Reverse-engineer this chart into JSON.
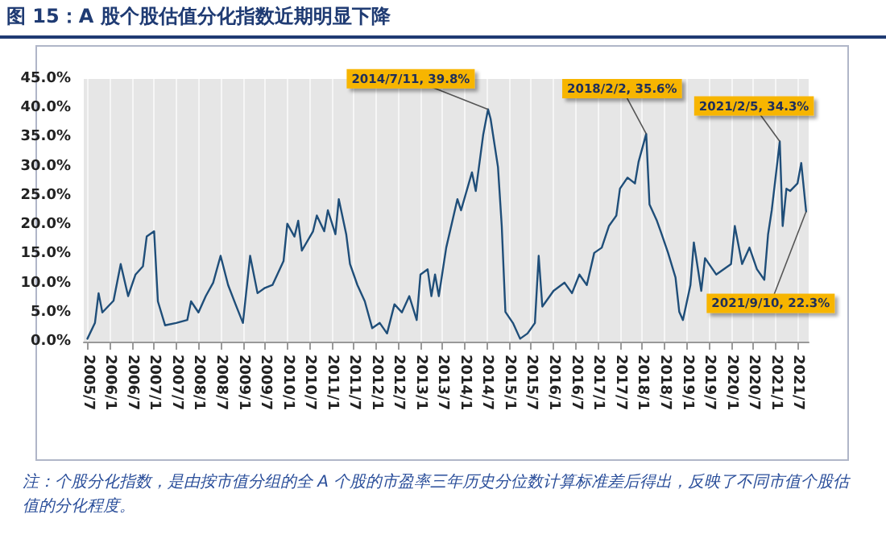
{
  "chart_data": {
    "type": "line",
    "title": "图 15：A 股个股估值分化指数近期明显下降",
    "x": [
      "2005-07",
      "2005-09",
      "2005-10",
      "2005-11",
      "2006-02",
      "2006-04",
      "2006-06",
      "2006-08",
      "2006-10",
      "2006-11",
      "2007-01",
      "2007-02",
      "2007-04",
      "2007-07",
      "2007-10",
      "2007-11",
      "2008-01",
      "2008-03",
      "2008-05",
      "2008-07",
      "2008-09",
      "2008-11",
      "2009-01",
      "2009-03",
      "2009-05",
      "2009-07",
      "2009-09",
      "2009-12",
      "2010-01",
      "2010-03",
      "2010-04",
      "2010-05",
      "2010-08",
      "2010-09",
      "2010-11",
      "2010-12",
      "2011-02",
      "2011-03",
      "2011-05",
      "2011-06",
      "2011-08",
      "2011-10",
      "2011-12",
      "2012-02",
      "2012-04",
      "2012-06",
      "2012-08",
      "2012-10",
      "2012-12",
      "2013-01",
      "2013-03",
      "2013-04",
      "2013-05",
      "2013-06",
      "2013-08",
      "2013-11",
      "2013-12",
      "2014-03",
      "2014-04",
      "2014-06",
      "2014-07-11",
      "2014-08",
      "2014-10",
      "2014-11",
      "2014-12",
      "2015-02",
      "2015-04",
      "2015-06",
      "2015-08",
      "2015-09",
      "2015-10",
      "2016-01",
      "2016-04",
      "2016-06",
      "2016-08",
      "2016-10",
      "2016-12",
      "2017-02",
      "2017-04",
      "2017-06",
      "2017-07",
      "2017-09",
      "2017-11",
      "2017-12",
      "2018-02-02",
      "2018-03",
      "2018-05",
      "2018-06",
      "2018-08",
      "2018-10",
      "2018-11",
      "2018-12",
      "2019-02",
      "2019-03",
      "2019-05",
      "2019-06",
      "2019-09",
      "2019-11",
      "2020-01",
      "2020-02",
      "2020-04",
      "2020-06",
      "2020-08",
      "2020-10",
      "2020-11",
      "2020-12",
      "2021-02-05",
      "2021-03",
      "2021-04",
      "2021-05",
      "2021-07",
      "2021-08",
      "2021-09-10"
    ],
    "series": [
      {
        "color": "#1f4e79",
        "values": [
          0.5,
          3.2,
          8.3,
          5,
          7,
          13.3,
          7.8,
          11.5,
          12.9,
          18,
          18.9,
          6.9,
          2.8,
          3.2,
          3.7,
          6.9,
          5,
          7.8,
          10.1,
          14.7,
          9.7,
          6.4,
          3.2,
          14.7,
          8.3,
          9.2,
          9.7,
          13.8,
          20.2,
          18,
          20.7,
          15.6,
          18.9,
          21.6,
          18.9,
          22.5,
          18.4,
          24.4,
          18.4,
          13.3,
          9.7,
          6.9,
          2.3,
          3.2,
          1.4,
          6.4,
          5,
          7.8,
          3.7,
          11.5,
          12.4,
          7.8,
          11.5,
          7.8,
          16.1,
          24.4,
          22.5,
          29,
          25.8,
          35.4,
          39.8,
          38.2,
          29.9,
          19.8,
          5.1,
          3.2,
          0.5,
          1.4,
          3.2,
          14.7,
          6,
          8.7,
          10.1,
          8.3,
          11.5,
          9.7,
          15.2,
          16.1,
          19.8,
          21.6,
          26.2,
          28.1,
          27.1,
          30.8,
          35.6,
          23.5,
          20.7,
          18.9,
          15.2,
          11,
          5.1,
          3.7,
          9.7,
          17,
          8.7,
          14.3,
          11.5,
          12.4,
          13.3,
          19.8,
          13.3,
          16.1,
          12.4,
          10.6,
          18.4,
          22.5,
          34.3,
          19.8,
          26.2,
          25.8,
          27.1,
          30.6,
          22.3
        ]
      }
    ],
    "xlim": [
      "2005-06",
      "2021-10"
    ],
    "xticks": [
      {
        "value": "2005-07",
        "label": "2005/7"
      },
      {
        "value": "2006-01",
        "label": "2006/1"
      },
      {
        "value": "2006-07",
        "label": "2006/7"
      },
      {
        "value": "2007-01",
        "label": "2007/1"
      },
      {
        "value": "2007-07",
        "label": "2007/7"
      },
      {
        "value": "2008-01",
        "label": "2008/1"
      },
      {
        "value": "2008-07",
        "label": "2008/7"
      },
      {
        "value": "2009-01",
        "label": "2009/1"
      },
      {
        "value": "2009-07",
        "label": "2009/7"
      },
      {
        "value": "2010-01",
        "label": "2010/1"
      },
      {
        "value": "2010-07",
        "label": "2010/7"
      },
      {
        "value": "2011-01",
        "label": "2011/1"
      },
      {
        "value": "2011-07",
        "label": "2011/7"
      },
      {
        "value": "2012-01",
        "label": "2012/1"
      },
      {
        "value": "2012-07",
        "label": "2012/7"
      },
      {
        "value": "2013-01",
        "label": "2013/1"
      },
      {
        "value": "2013-07",
        "label": "2013/7"
      },
      {
        "value": "2014-01",
        "label": "2014/1"
      },
      {
        "value": "2014-07",
        "label": "2014/7"
      },
      {
        "value": "2015-01",
        "label": "2015/1"
      },
      {
        "value": "2015-07",
        "label": "2015/7"
      },
      {
        "value": "2016-01",
        "label": "2016/1"
      },
      {
        "value": "2016-07",
        "label": "2016/7"
      },
      {
        "value": "2017-01",
        "label": "2017/1"
      },
      {
        "value": "2017-07",
        "label": "2017/7"
      },
      {
        "value": "2018-01",
        "label": "2018/1"
      },
      {
        "value": "2018-07",
        "label": "2018/7"
      },
      {
        "value": "2019-01",
        "label": "2019/1"
      },
      {
        "value": "2019-07",
        "label": "2019/7"
      },
      {
        "value": "2020-01",
        "label": "2020/1"
      },
      {
        "value": "2020-07",
        "label": "2020/7"
      },
      {
        "value": "2021-01",
        "label": "2021/1"
      },
      {
        "value": "2021-07",
        "label": "2021/7"
      }
    ],
    "ylim": [
      0,
      45
    ],
    "yticks": [
      {
        "value": 0,
        "label": "0.0%"
      },
      {
        "value": 5,
        "label": "5.0%"
      },
      {
        "value": 10,
        "label": "10.0%"
      },
      {
        "value": 15,
        "label": "15.0%"
      },
      {
        "value": 20,
        "label": "20.0%"
      },
      {
        "value": 25,
        "label": "25.0%"
      },
      {
        "value": 30,
        "label": "30.0%"
      },
      {
        "value": 35,
        "label": "35.0%"
      },
      {
        "value": 40,
        "label": "40.0%"
      },
      {
        "value": 45,
        "label": "45.0%"
      }
    ],
    "grid": "x",
    "marker": "none",
    "line_style": "solid",
    "annotations": [
      {
        "text": "2014/7/11, 39.8%",
        "x": "2014-07-11",
        "y": 39.8
      },
      {
        "text": "2018/2/2, 35.6%",
        "x": "2018-02-02",
        "y": 35.6
      },
      {
        "text": "2021/2/5, 34.3%",
        "x": "2021-02-05",
        "y": 34.3
      },
      {
        "text": "2021/9/10, 22.3%",
        "x": "2021-09-10",
        "y": 22.3
      },
      "注：个股分化指数，是由按市值分组的全 A 个股的市盈率三年历史分位数计算标准差后得出，反映了不同市值个股估值的分化程度。"
    ]
  }
}
